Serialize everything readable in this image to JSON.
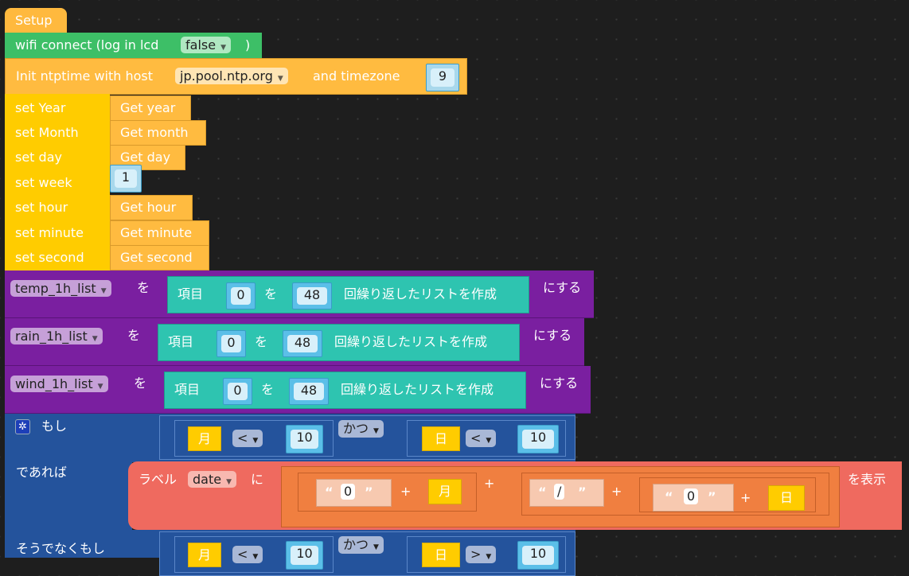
{
  "setup": {
    "label": "Setup"
  },
  "wifi": {
    "label": "wifi connect (log in lcd",
    "value": "false",
    "close": ")"
  },
  "ntp": {
    "label": "Init ntptime with host",
    "host": "jp.pool.ntp.org",
    "tz_label": "and timezone",
    "tz": "9"
  },
  "set_rows": [
    {
      "label": "set Year",
      "value": "Get year"
    },
    {
      "label": "set Month",
      "value": "Get month"
    },
    {
      "label": "set day",
      "value": "Get day"
    },
    {
      "label": "set week",
      "value": "1"
    },
    {
      "label": "set hour",
      "value": "Get hour"
    },
    {
      "label": "set minute",
      "value": "Get minute"
    },
    {
      "label": "set second",
      "value": "Get second"
    }
  ],
  "lists": [
    {
      "var": "temp_1h_list",
      "wo": "を",
      "item": "項目",
      "val": "0",
      "wo2": "を",
      "count": "48",
      "make": "回繰り返したリストを作成",
      "suru": "にする"
    },
    {
      "var": "rain_1h_list",
      "wo": "を",
      "item": "項目",
      "val": "0",
      "wo2": "を",
      "count": "48",
      "make": "回繰り返したリストを作成",
      "suru": "にする"
    },
    {
      "var": "wind_1h_list",
      "wo": "を",
      "item": "項目",
      "val": "0",
      "wo2": "を",
      "count": "48",
      "make": "回繰り返したリストを作成",
      "suru": "にする"
    }
  ],
  "if_block": {
    "if": "もし",
    "then": "であれば",
    "elseif": "そうでなくもし",
    "cond1": {
      "a": "月",
      "op": "<",
      "b": "10",
      "and": "かつ",
      "c": "日",
      "op2": "<",
      "d": "10"
    },
    "cond2": {
      "a": "月",
      "op": "<",
      "b": "10",
      "and": "かつ",
      "c": "日",
      "op2": ">",
      "d": "10"
    }
  },
  "label_block": {
    "label": "ラベル",
    "var": "date",
    "ni": "に",
    "show": "を表示",
    "q_open": "“",
    "q_close": "”",
    "s1": "0",
    "m": "月",
    "plus": "+",
    "s2": "/",
    "s3": "0",
    "d": "日"
  }
}
